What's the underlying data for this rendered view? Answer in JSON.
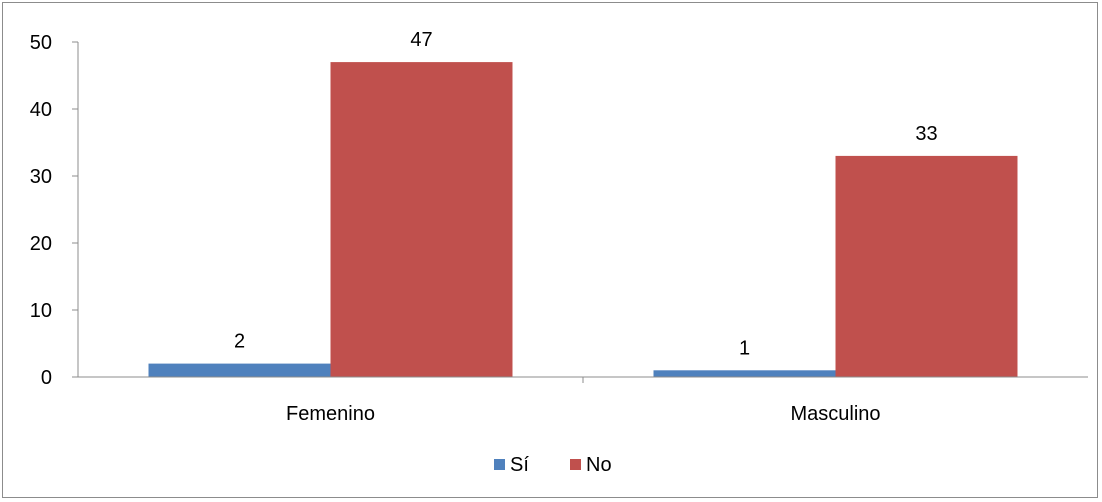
{
  "chart_data": {
    "type": "bar",
    "categories": [
      "Femenino",
      "Masculino"
    ],
    "series": [
      {
        "name": "Sí",
        "values": [
          2,
          1
        ],
        "color": "#4f81bd"
      },
      {
        "name": "No",
        "values": [
          47,
          33
        ],
        "color": "#c0504d"
      }
    ],
    "ylim": [
      0,
      50
    ],
    "yticks": [
      "0",
      "10",
      "20",
      "30",
      "40",
      "50"
    ],
    "grid": false,
    "data_labels": true,
    "legend_position": "bottom"
  }
}
